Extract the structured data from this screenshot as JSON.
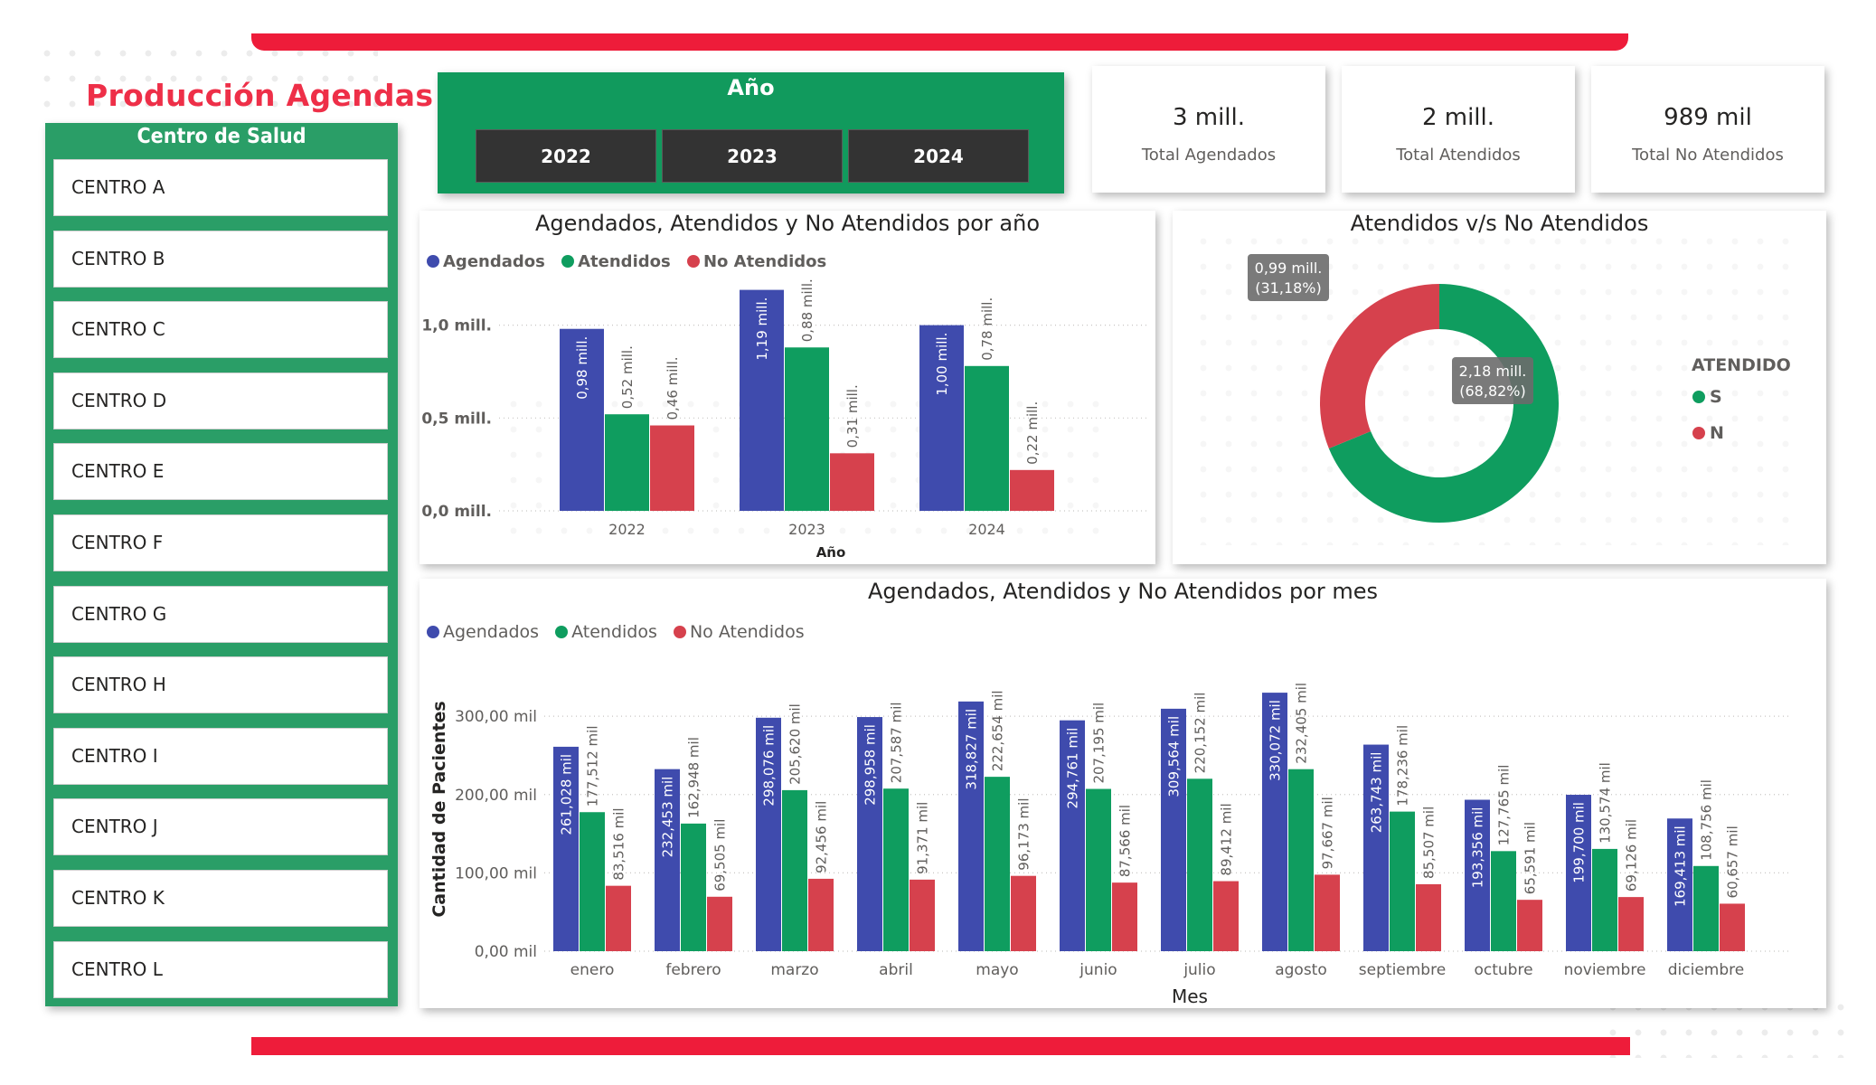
{
  "header": {
    "title": "Producción Agendas"
  },
  "colors": {
    "agendados": "#3f4bad",
    "atendidos": "#0f9d5f",
    "no_atendidos": "#d6414d",
    "accent_red": "#ee1c3a"
  },
  "centro_slicer": {
    "title": "Centro de Salud",
    "items": [
      "CENTRO A",
      "CENTRO B",
      "CENTRO C",
      "CENTRO D",
      "CENTRO E",
      "CENTRO F",
      "CENTRO G",
      "CENTRO H",
      "CENTRO I",
      "CENTRO J",
      "CENTRO K",
      "CENTRO L"
    ]
  },
  "year_slicer": {
    "title": "Año",
    "options": [
      "2022",
      "2023",
      "2024"
    ]
  },
  "kpis": [
    {
      "value": "3 mill.",
      "label": "Total Agendados"
    },
    {
      "value": "2 mill.",
      "label": "Total Atendidos"
    },
    {
      "value": "989 mil",
      "label": "Total No Atendidos"
    }
  ],
  "chart_data": [
    {
      "type": "bar",
      "title": "Agendados, Atendidos y No Atendidos por año",
      "xlabel": "Año",
      "ylabel": "",
      "categories": [
        "2022",
        "2023",
        "2024"
      ],
      "series": [
        {
          "name": "Agendados",
          "values": [
            0.98,
            1.19,
            1.0
          ],
          "labels": [
            "0,98 mill.",
            "1,19 mill.",
            "1,00 mill."
          ]
        },
        {
          "name": "Atendidos",
          "values": [
            0.52,
            0.88,
            0.78
          ],
          "labels": [
            "0,52 mill.",
            "0,88 mill.",
            "0,78 mill."
          ]
        },
        {
          "name": "No Atendidos",
          "values": [
            0.46,
            0.31,
            0.22
          ],
          "labels": [
            "0,46 mill.",
            "0,31 mill.",
            "0,22 mill."
          ]
        }
      ],
      "yticks": [
        0,
        0.5,
        1.0
      ],
      "ytick_labels": [
        "0,0 mill.",
        "0,5 mill.",
        "1,0 mill."
      ],
      "ylim": [
        0,
        1.3
      ],
      "legend": "top-left"
    },
    {
      "type": "pie",
      "title": "Atendidos v/s No Atendidos",
      "legend_title": "ATENDIDO",
      "slices": [
        {
          "name": "S",
          "value": 2.18,
          "percent": 68.82,
          "label_value": "2,18 mill.",
          "label_pct": "(68,82%)"
        },
        {
          "name": "N",
          "value": 0.99,
          "percent": 31.18,
          "label_value": "0,99 mill.",
          "label_pct": "(31,18%)"
        }
      ],
      "legend": "right"
    },
    {
      "type": "bar",
      "title": "Agendados, Atendidos y No Atendidos por mes",
      "xlabel": "Mes",
      "ylabel": "Cantidad de Pacientes",
      "categories": [
        "enero",
        "febrero",
        "marzo",
        "abril",
        "mayo",
        "junio",
        "julio",
        "agosto",
        "septiembre",
        "octubre",
        "noviembre",
        "diciembre"
      ],
      "series": [
        {
          "name": "Agendados",
          "values": [
            261028,
            232453,
            298076,
            298958,
            318827,
            294761,
            309564,
            330072,
            263743,
            193356,
            199700,
            169413
          ],
          "labels": [
            "261,028 mil",
            "232,453 mil",
            "298,076 mil",
            "298,958 mil",
            "318,827 mil",
            "294,761 mil",
            "309,564 mil",
            "330,072 mil",
            "263,743 mil",
            "193,356 mil",
            "199,700 mil",
            "169,413 mil"
          ]
        },
        {
          "name": "Atendidos",
          "values": [
            177512,
            162948,
            205620,
            207587,
            222654,
            207195,
            220152,
            232405,
            178236,
            127765,
            130574,
            108756
          ],
          "labels": [
            "177,512 mil",
            "162,948 mil",
            "205,620 mil",
            "207,587 mil",
            "222,654 mil",
            "207,195 mil",
            "220,152 mil",
            "232,405 mil",
            "178,236 mil",
            "127,765 mil",
            "130,574 mil",
            "108,756 mil"
          ]
        },
        {
          "name": "No Atendidos",
          "values": [
            83516,
            69505,
            92456,
            91371,
            96173,
            87566,
            89412,
            97667,
            85507,
            65591,
            69126,
            60657
          ],
          "labels": [
            "83,516 mil",
            "69,505 mil",
            "92,456 mil",
            "91,371 mil",
            "96,173 mil",
            "87,566 mil",
            "89,412 mil",
            "97,667 mil",
            "85,507 mil",
            "65,591 mil",
            "69,126 mil",
            "60,657 mil"
          ]
        }
      ],
      "yticks": [
        0,
        100000,
        200000,
        300000
      ],
      "ytick_labels": [
        "0,00 mil",
        "100,00 mil",
        "200,00 mil",
        "300,00 mil"
      ],
      "ylim": [
        0,
        340000
      ],
      "legend": "top-left"
    }
  ]
}
